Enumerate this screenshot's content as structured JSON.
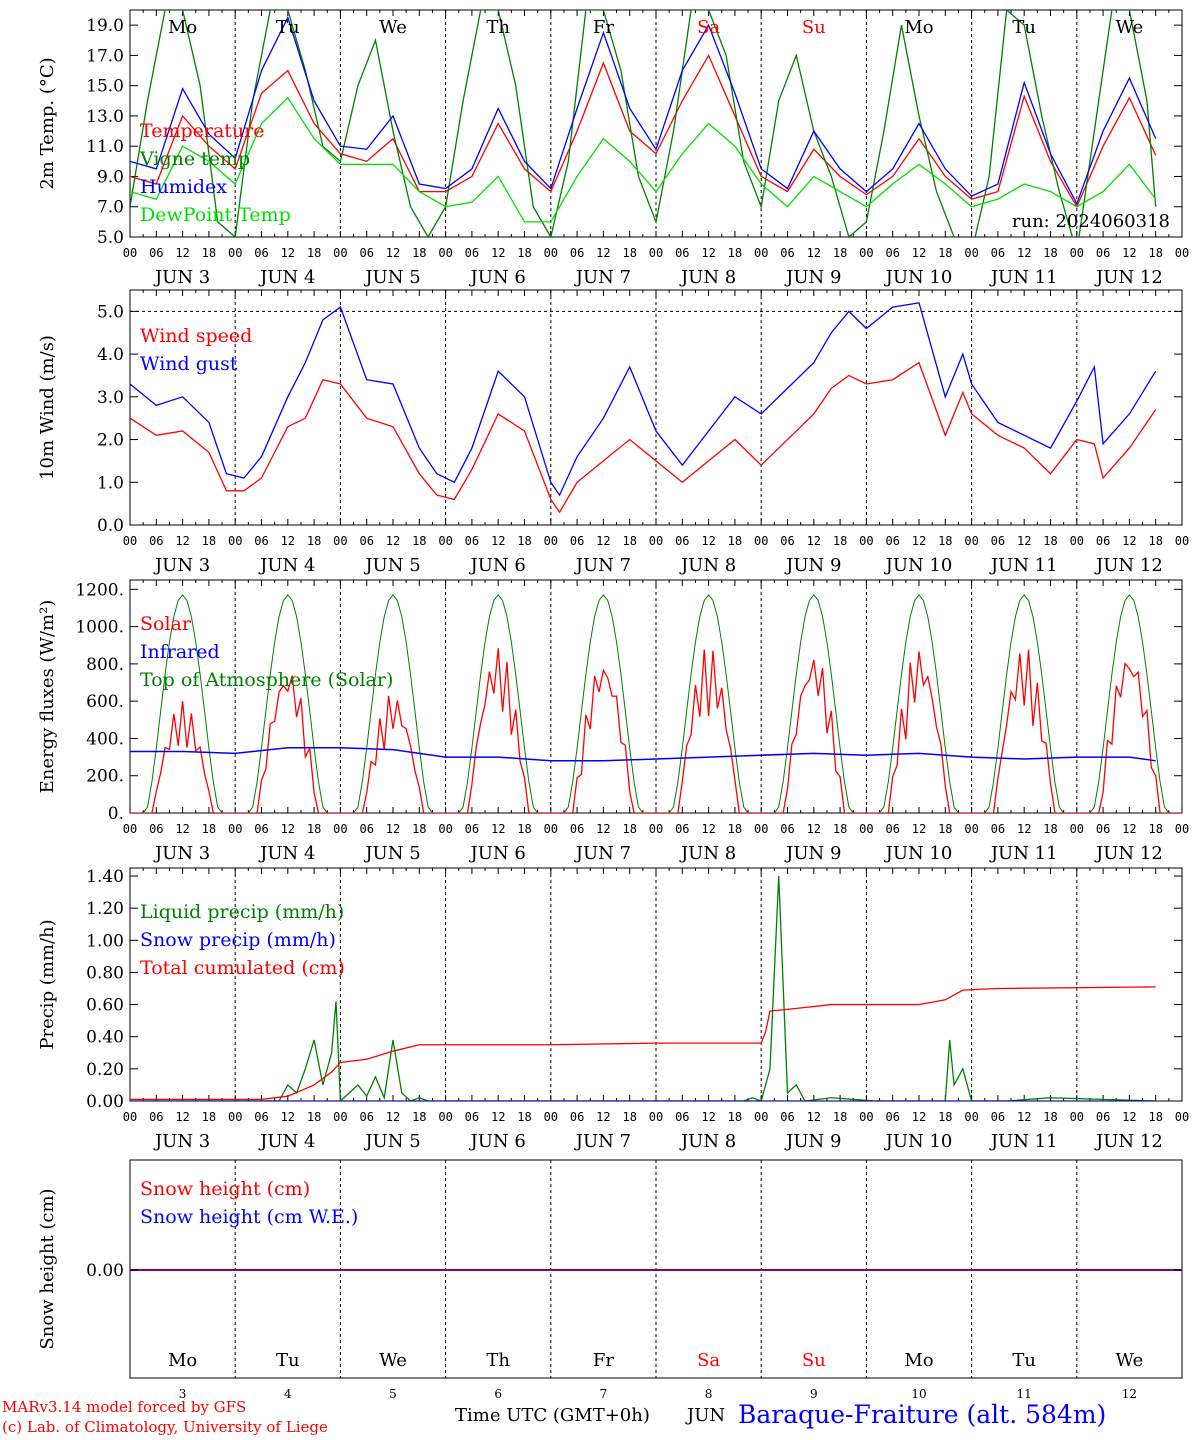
{
  "footer": {
    "model": "MARv3.14 model forced by GFS",
    "credit": "(c) Lab. of Climatology, University of Liege",
    "xlabel": "Time UTC (GMT+0h)",
    "month": "JUN",
    "station": "Baraque-Fraiture (alt. 584m)"
  },
  "run_label": "run: 2024060318",
  "days": [
    {
      "name": "Mo",
      "date": "3",
      "weekend": false
    },
    {
      "name": "Tu",
      "date": "4",
      "weekend": false
    },
    {
      "name": "We",
      "date": "5",
      "weekend": false
    },
    {
      "name": "Th",
      "date": "6",
      "weekend": false
    },
    {
      "name": "Fr",
      "date": "7",
      "weekend": false
    },
    {
      "name": "Sa",
      "date": "8",
      "weekend": true
    },
    {
      "name": "Su",
      "date": "9",
      "weekend": true
    },
    {
      "name": "Mo",
      "date": "10",
      "weekend": false
    },
    {
      "name": "Tu",
      "date": "11",
      "weekend": false
    },
    {
      "name": "We",
      "date": "12",
      "weekend": false
    }
  ],
  "hour_ticks": [
    "00",
    "06",
    "12",
    "18"
  ],
  "colors": {
    "red": "#ff0000",
    "green": "#008000",
    "blue": "#0000ff",
    "lightgreen": "#00e000",
    "purple": "#800080",
    "weekend": "#ff0000"
  },
  "chart_data": [
    {
      "type": "line",
      "ylabel": "2m Temp. (°C)",
      "ylim": [
        5,
        20
      ],
      "yticks": [
        "5.0",
        "7.0",
        "9.0",
        "11.0",
        "13.0",
        "15.0",
        "17.0",
        "19.0"
      ],
      "ytick_values": [
        5,
        7,
        9,
        11,
        13,
        15,
        17,
        19
      ],
      "x_unit": "hours from JUN 3 00 UTC",
      "show_day_names": true,
      "legend": [
        {
          "name": "Temperature",
          "color": "red"
        },
        {
          "name": "Vigne temp",
          "color": "green"
        },
        {
          "name": "Humidex",
          "color": "blue"
        },
        {
          "name": "DewPoint Temp",
          "color": "lightgreen"
        }
      ],
      "series": [
        {
          "name": "Temperature",
          "color": "red",
          "x": [
            0,
            6,
            12,
            18,
            24,
            30,
            36,
            42,
            48,
            54,
            60,
            66,
            72,
            78,
            84,
            90,
            96,
            102,
            108,
            114,
            120,
            126,
            132,
            138,
            144,
            150,
            156,
            162,
            168,
            174,
            180,
            186,
            192,
            198,
            204,
            210,
            216,
            222,
            228,
            234
          ],
          "values": [
            9,
            8.5,
            13,
            11,
            9.5,
            14.5,
            16,
            12.5,
            10.5,
            10,
            11.5,
            8,
            8,
            9,
            12.5,
            9.5,
            8,
            12,
            16.5,
            12,
            10.5,
            14,
            17,
            13,
            9,
            8,
            10.8,
            9,
            7.8,
            9,
            11.5,
            9,
            7.5,
            8,
            14.3,
            10,
            7,
            11,
            14.2,
            10.4
          ]
        },
        {
          "name": "Vigne temp",
          "color": "green",
          "x": [
            0,
            4,
            8,
            12,
            16,
            20,
            24,
            28,
            32,
            36,
            40,
            44,
            48,
            52,
            56,
            60,
            64,
            68,
            72,
            76,
            80,
            84,
            88,
            92,
            96,
            100,
            104,
            108,
            112,
            116,
            120,
            124,
            128,
            132,
            136,
            140,
            144,
            148,
            152,
            156,
            160,
            164,
            168,
            172,
            176,
            180,
            184,
            188,
            192,
            196,
            200,
            204,
            208,
            212,
            216,
            220,
            224,
            228,
            232,
            234
          ],
          "values": [
            7,
            14,
            20,
            20,
            15,
            6,
            5,
            14,
            20,
            20,
            16,
            11,
            10,
            15,
            18,
            12,
            7,
            5,
            7,
            14,
            20,
            20,
            15,
            7,
            5,
            10,
            20,
            20,
            16,
            9,
            6,
            12,
            20,
            20,
            17,
            10,
            7,
            14,
            17,
            12,
            9,
            5,
            6,
            12,
            19,
            13,
            8,
            5,
            4,
            9,
            20,
            19,
            13,
            8,
            4,
            12,
            20,
            20,
            14,
            7
          ]
        },
        {
          "name": "Humidex",
          "color": "blue",
          "x": [
            0,
            6,
            12,
            18,
            24,
            30,
            36,
            42,
            48,
            54,
            60,
            66,
            72,
            78,
            84,
            90,
            96,
            102,
            108,
            114,
            120,
            126,
            132,
            138,
            144,
            150,
            156,
            162,
            168,
            174,
            180,
            186,
            192,
            198,
            204,
            210,
            216,
            222,
            228,
            234
          ],
          "values": [
            10,
            9.5,
            14.8,
            11.8,
            10.2,
            16,
            19.5,
            14,
            11,
            10.8,
            13,
            8.5,
            8.2,
            9.5,
            13.5,
            10,
            8.2,
            13.5,
            18.5,
            13.5,
            10.8,
            16,
            19,
            14.5,
            9.5,
            8.2,
            12,
            9.5,
            8,
            9.5,
            12.5,
            9.5,
            7.7,
            8.5,
            15.2,
            10.5,
            7.2,
            12,
            15.5,
            11.5
          ]
        },
        {
          "name": "DewPoint Temp",
          "color": "lightgreen",
          "x": [
            0,
            6,
            12,
            18,
            24,
            30,
            36,
            42,
            48,
            54,
            60,
            66,
            72,
            78,
            84,
            90,
            96,
            102,
            108,
            114,
            120,
            126,
            132,
            138,
            144,
            150,
            156,
            162,
            168,
            174,
            180,
            186,
            192,
            198,
            204,
            210,
            216,
            222,
            228,
            234
          ],
          "values": [
            8,
            7.5,
            11,
            10,
            8.5,
            12.5,
            14.2,
            11.5,
            9.8,
            9.8,
            9.8,
            8,
            7,
            7.3,
            9,
            6,
            6,
            9,
            11.5,
            10,
            8,
            10.5,
            12.5,
            11,
            8.5,
            7,
            9,
            8,
            7,
            8.5,
            9.8,
            8.5,
            7,
            7.5,
            8.5,
            8,
            7,
            8,
            9.8,
            7.5
          ]
        }
      ]
    },
    {
      "type": "line",
      "ylabel": "10m Wind (m/s)",
      "ylim": [
        0,
        5.5
      ],
      "yticks": [
        "0.0",
        "1.0",
        "2.0",
        "3.0",
        "4.0",
        "5.0"
      ],
      "ytick_values": [
        0,
        1,
        2,
        3,
        4,
        5
      ],
      "hline": 5,
      "x_unit": "hours from JUN 3 00 UTC",
      "legend": [
        {
          "name": "Wind speed",
          "color": "red"
        },
        {
          "name": "Wind gust",
          "color": "blue"
        }
      ],
      "series": [
        {
          "name": "Wind speed",
          "color": "red",
          "x": [
            0,
            6,
            12,
            18,
            22,
            26,
            30,
            36,
            40,
            44,
            48,
            54,
            60,
            66,
            70,
            74,
            78,
            84,
            90,
            96,
            98,
            102,
            108,
            114,
            120,
            126,
            132,
            138,
            144,
            150,
            156,
            160,
            164,
            168,
            174,
            180,
            186,
            190,
            192,
            198,
            204,
            210,
            216,
            220,
            222,
            228,
            234
          ],
          "values": [
            2.5,
            2.1,
            2.2,
            1.7,
            0.8,
            0.8,
            1.1,
            2.3,
            2.5,
            3.4,
            3.3,
            2.5,
            2.3,
            1.2,
            0.7,
            0.6,
            1.3,
            2.6,
            2.2,
            0.6,
            0.3,
            1,
            1.5,
            2,
            1.5,
            1,
            1.5,
            2,
            1.4,
            2,
            2.6,
            3.2,
            3.5,
            3.3,
            3.4,
            3.8,
            2.1,
            3.1,
            2.6,
            2.1,
            1.8,
            1.2,
            2,
            1.9,
            1.1,
            1.8,
            2.7
          ]
        },
        {
          "name": "Wind gust",
          "color": "blue",
          "x": [
            0,
            6,
            12,
            18,
            22,
            26,
            30,
            36,
            40,
            44,
            48,
            54,
            60,
            66,
            70,
            74,
            78,
            84,
            90,
            96,
            98,
            102,
            108,
            114,
            120,
            126,
            132,
            138,
            144,
            150,
            156,
            160,
            164,
            168,
            174,
            180,
            186,
            190,
            192,
            198,
            204,
            210,
            216,
            220,
            222,
            228,
            234
          ],
          "values": [
            3.3,
            2.8,
            3,
            2.4,
            1.2,
            1.1,
            1.6,
            3,
            3.8,
            4.8,
            5.1,
            3.4,
            3.3,
            1.8,
            1.2,
            1,
            1.8,
            3.6,
            3,
            1,
            0.7,
            1.6,
            2.5,
            3.7,
            2.2,
            1.4,
            2.2,
            3,
            2.6,
            3.2,
            3.8,
            4.5,
            5,
            4.6,
            5.1,
            5.2,
            3,
            4,
            3.3,
            2.4,
            2.1,
            1.8,
            2.9,
            3.7,
            1.9,
            2.6,
            3.6
          ]
        }
      ]
    },
    {
      "type": "line",
      "ylabel": "Energy fluxes (W/m²)",
      "ylim": [
        0,
        1250
      ],
      "yticks": [
        "0.",
        "200.",
        "400.",
        "600.",
        "800.",
        "1000.",
        "1200."
      ],
      "ytick_values": [
        0,
        200,
        400,
        600,
        800,
        1000,
        1200
      ],
      "x_unit": "hours from JUN 3 00 UTC",
      "legend": [
        {
          "name": "Solar",
          "color": "red"
        },
        {
          "name": "Infrared",
          "color": "blue"
        },
        {
          "name": "Top of Atmosphere (Solar)",
          "color": "green"
        }
      ],
      "toa_peak": 1170,
      "series": [
        {
          "name": "Solar",
          "color": "red",
          "day_peaks": [
            600,
            800,
            650,
            900,
            850,
            900,
            880,
            900,
            900,
            900
          ]
        },
        {
          "name": "Infrared",
          "color": "blue",
          "x": [
            0,
            12,
            24,
            36,
            48,
            60,
            72,
            84,
            96,
            108,
            120,
            132,
            144,
            156,
            168,
            180,
            192,
            204,
            216,
            228,
            234
          ],
          "values": [
            330,
            330,
            320,
            350,
            350,
            340,
            300,
            300,
            280,
            280,
            290,
            300,
            310,
            320,
            310,
            320,
            300,
            290,
            300,
            300,
            280
          ]
        }
      ]
    },
    {
      "type": "line",
      "ylabel": "Precip (mm/h)",
      "ylim": [
        0,
        1.45
      ],
      "yticks": [
        "0.00",
        "0.20",
        "0.40",
        "0.60",
        "0.80",
        "1.00",
        "1.20",
        "1.40"
      ],
      "ytick_values": [
        0,
        0.2,
        0.4,
        0.6,
        0.8,
        1.0,
        1.2,
        1.4
      ],
      "x_unit": "hours from JUN 3 00 UTC",
      "legend": [
        {
          "name": "Liquid precip (mm/h)",
          "color": "green"
        },
        {
          "name": "Snow precip (mm/h)",
          "color": "blue"
        },
        {
          "name": "Total cumulated (cm)",
          "color": "red"
        }
      ],
      "series": [
        {
          "name": "Liquid precip (mm/h)",
          "color": "green",
          "x": [
            0,
            34,
            36,
            38,
            40,
            42,
            44,
            46,
            47,
            48,
            50,
            52,
            54,
            56,
            58,
            60,
            62,
            64,
            66,
            68,
            70,
            140,
            142,
            144,
            146,
            148,
            150,
            152,
            154,
            160,
            170,
            180,
            186,
            187,
            188,
            190,
            192,
            196,
            200,
            210,
            234
          ],
          "values": [
            0,
            0,
            0.1,
            0.05,
            0.2,
            0.38,
            0.1,
            0.3,
            0.62,
            0,
            0.05,
            0.1,
            0.03,
            0.15,
            0.02,
            0.38,
            0.05,
            0,
            0.02,
            0,
            0,
            0,
            0.02,
            0,
            0.2,
            1.4,
            0.05,
            0.1,
            0,
            0.02,
            0,
            0,
            0,
            0.38,
            0.1,
            0.2,
            0,
            0,
            0,
            0.02,
            0
          ]
        },
        {
          "name": "Snow precip (mm/h)",
          "color": "blue",
          "x": [
            0,
            234
          ],
          "values": [
            0,
            0
          ]
        },
        {
          "name": "Total cumulated (cm)",
          "color": "red",
          "x": [
            0,
            30,
            36,
            42,
            46,
            48,
            54,
            60,
            66,
            72,
            96,
            120,
            144,
            145,
            146,
            150,
            160,
            180,
            186,
            190,
            198,
            234
          ],
          "values": [
            0.01,
            0.01,
            0.03,
            0.1,
            0.18,
            0.24,
            0.26,
            0.31,
            0.35,
            0.35,
            0.35,
            0.36,
            0.36,
            0.43,
            0.56,
            0.57,
            0.6,
            0.6,
            0.63,
            0.69,
            0.7,
            0.71
          ]
        }
      ]
    },
    {
      "type": "line",
      "ylabel": "Snow height (cm)",
      "yticks": [
        "0.00"
      ],
      "x_unit": "hours from JUN 3 00 UTC",
      "legend": [
        {
          "name": "Snow height (cm)",
          "color": "red"
        },
        {
          "name": "Snow height (cm W.E.)",
          "color": "blue"
        }
      ],
      "series": [
        {
          "name": "Snow height (cm)",
          "color": "purple",
          "x": [
            0,
            234
          ],
          "values": [
            0,
            0
          ]
        }
      ]
    }
  ]
}
